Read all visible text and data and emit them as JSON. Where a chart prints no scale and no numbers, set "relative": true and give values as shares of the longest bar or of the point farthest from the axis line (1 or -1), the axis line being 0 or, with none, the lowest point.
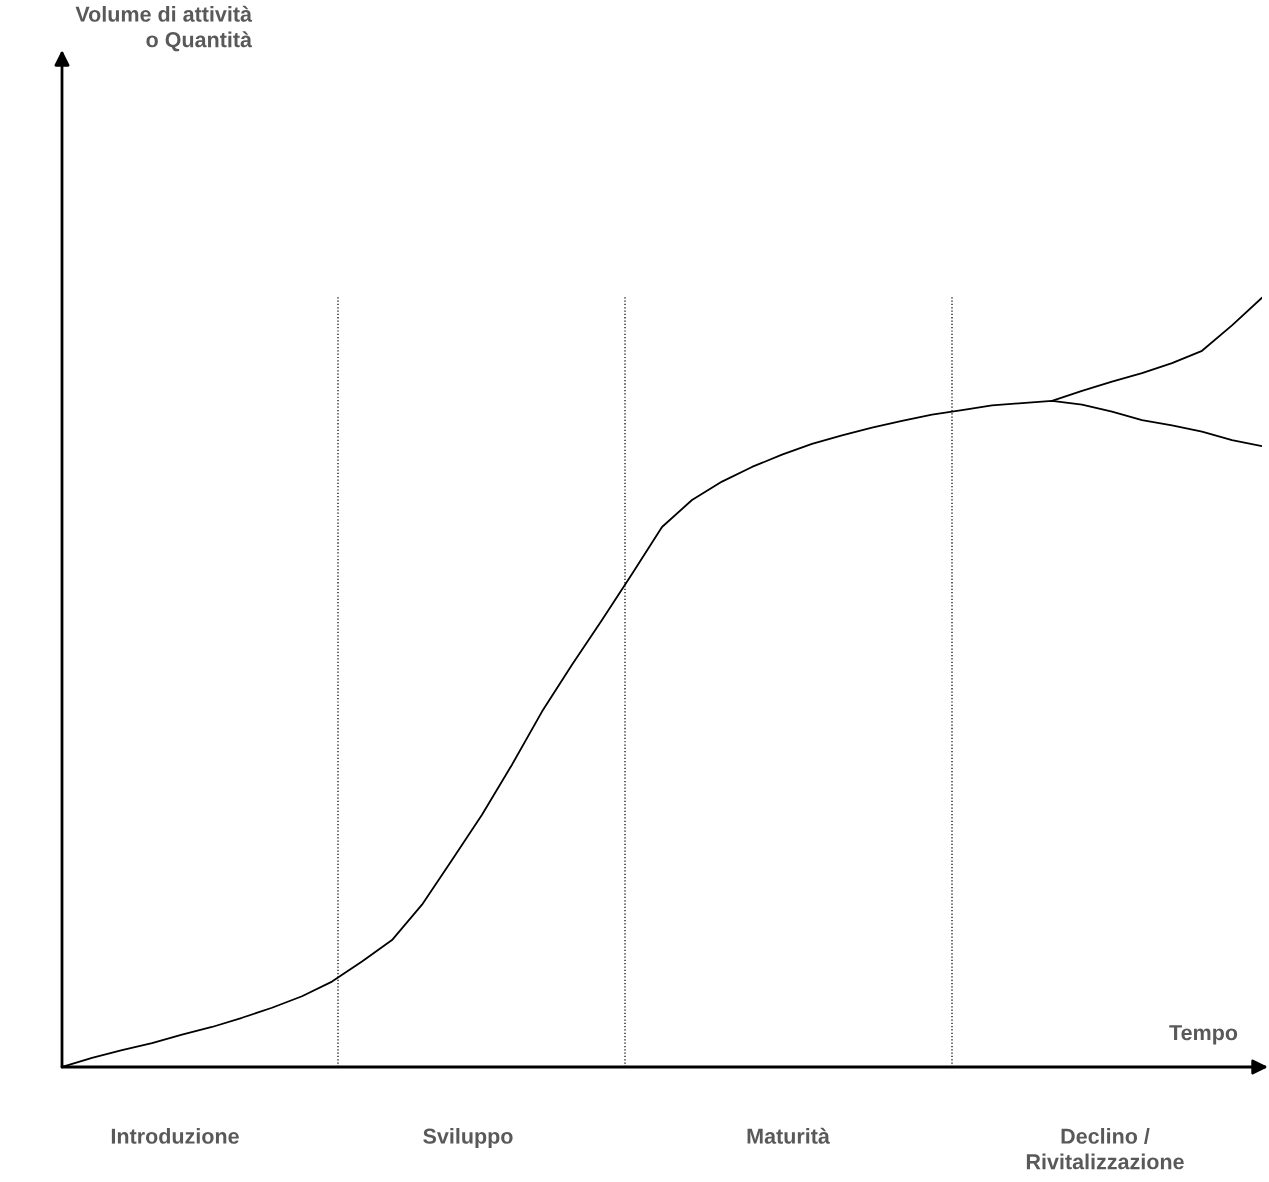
{
  "chart_data": {
    "type": "line",
    "relative": true,
    "xlabel": "Tempo",
    "categories": [
      null,
      null,
      null,
      null,
      null,
      null,
      null,
      null,
      null,
      null,
      null,
      null,
      null,
      null,
      null,
      null,
      null,
      null,
      null,
      null,
      null,
      null,
      null,
      null,
      null,
      null,
      null,
      null,
      null,
      null,
      null,
      null,
      null,
      null,
      null,
      null,
      null,
      null,
      null,
      null,
      null
    ],
    "series": [
      {
        "color": "#000000",
        "values": [
          0,
          0.012,
          0.022,
          0.031,
          0.042,
          0.052,
          0.064,
          0.077,
          0.092,
          0.111,
          0.137,
          0.165,
          0.211,
          0.269,
          0.328,
          0.393,
          0.462,
          0.523,
          0.581,
          0.641,
          0.702,
          0.737,
          0.761,
          0.78,
          0.796,
          0.81,
          0.821,
          0.831,
          0.84,
          0.848,
          0.854,
          0.86,
          0.863,
          0.866,
          0.861,
          0.852,
          0.841,
          0.834,
          0.826,
          0.815,
          0.807
        ]
      },
      {
        "color": "#000000",
        "values": [
          null,
          null,
          null,
          null,
          null,
          null,
          null,
          null,
          null,
          null,
          null,
          null,
          null,
          null,
          null,
          null,
          null,
          null,
          null,
          null,
          null,
          null,
          null,
          null,
          null,
          null,
          null,
          null,
          null,
          null,
          null,
          null,
          null,
          0.866,
          0.879,
          0.891,
          0.902,
          0.915,
          0.931,
          0.964,
          1.0
        ]
      }
    ],
    "annotations": [
      "Volume di attività\no Quantità",
      "Introduzione",
      "Sviluppo",
      "Maturità",
      "Declino /\nRivitalizzazione"
    ],
    "legend": false,
    "grid": false
  }
}
